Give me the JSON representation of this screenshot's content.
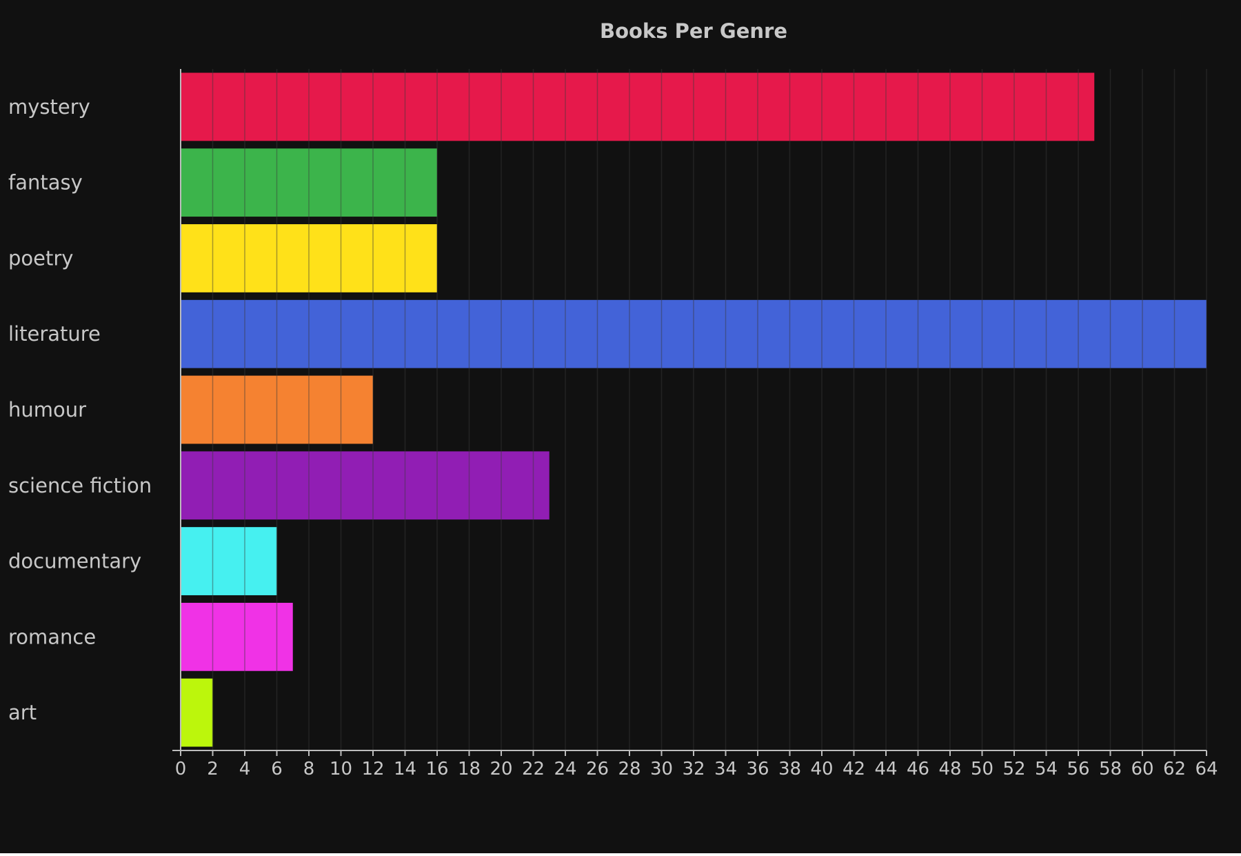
{
  "chart_data": {
    "type": "bar",
    "orientation": "horizontal",
    "title": "Books Per Genre",
    "xlabel": "",
    "ylabel": "",
    "categories": [
      "mystery",
      "fantasy",
      "poetry",
      "literature",
      "humour",
      "science fiction",
      "documentary",
      "romance",
      "art"
    ],
    "values": [
      57,
      16,
      16,
      64,
      12,
      23,
      6,
      7,
      2
    ],
    "bar_colors": [
      "#e6194b",
      "#3cb44b",
      "#ffe119",
      "#4363d8",
      "#f58231",
      "#911eb4",
      "#46f0f0",
      "#f032e6",
      "#bcf60c"
    ],
    "xlim": [
      0,
      64
    ],
    "x_ticks": [
      0,
      2,
      4,
      6,
      8,
      10,
      12,
      14,
      16,
      18,
      20,
      22,
      24,
      26,
      28,
      30,
      32,
      34,
      36,
      38,
      40,
      42,
      44,
      46,
      48,
      50,
      52,
      54,
      56,
      58,
      60,
      62,
      64
    ],
    "grid": "vertical",
    "legend": "none",
    "colors": {
      "background": "#111111",
      "text": "#c8c8c8",
      "title": "#c8c8c8",
      "grid": "#3a3a3a",
      "axis": "#bdbdbd"
    }
  }
}
